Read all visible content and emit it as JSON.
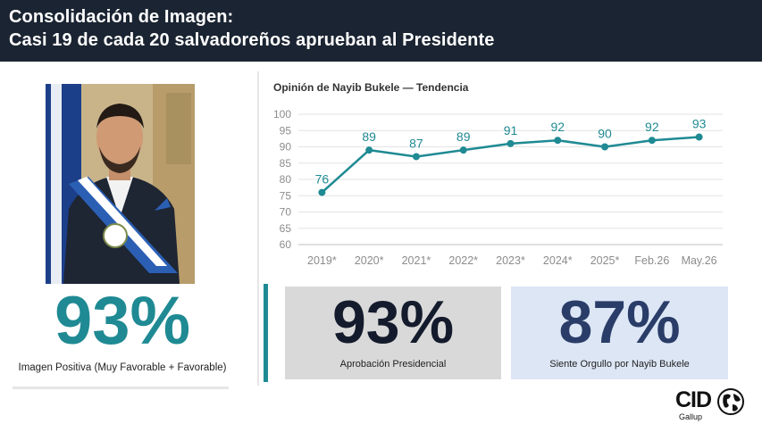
{
  "header": {
    "line1": "Consolidación de Imagen:",
    "line2": "Casi 19 de cada 20 salvadoreños aprueban al Presidente"
  },
  "left_panel": {
    "portrait": "portrait-photo",
    "big_value": "93%",
    "caption": "Imagen Positiva (Muy Favorable + Favorable)"
  },
  "chart_title": "Opinión de Nayib Bukele — Tendencia",
  "chart_data": {
    "type": "line",
    "title": "Opinión de Nayib Bukele — Tendencia",
    "categories": [
      "2019*",
      "2020*",
      "2021*",
      "2022*",
      "2023*",
      "2024*",
      "2025*",
      "Feb.26",
      "May.26"
    ],
    "series": [
      {
        "values": [
          76,
          89,
          87,
          89,
          91,
          92,
          90,
          92,
          93
        ]
      }
    ],
    "data_labels": [
      "76",
      "89",
      "87",
      "89",
      "91",
      "92",
      "90",
      "92",
      "93"
    ],
    "yticks": [
      "100",
      "95",
      "90",
      "85",
      "80",
      "75",
      "70",
      "65",
      "60"
    ],
    "ylim": [
      60,
      100
    ],
    "grid": true,
    "color": "#1f8a93"
  },
  "stat_boxes": [
    {
      "value": "93%",
      "caption": "Aprobación Presidencial"
    },
    {
      "value": "87%",
      "caption": "Siente Orgullo por Nayib Bukele"
    }
  ],
  "logo": {
    "name": "CID",
    "sub": "Gallup"
  },
  "colors": {
    "header_bg": "#1b2432",
    "teal": "#1f8a93",
    "navy": "#2a3d68"
  }
}
